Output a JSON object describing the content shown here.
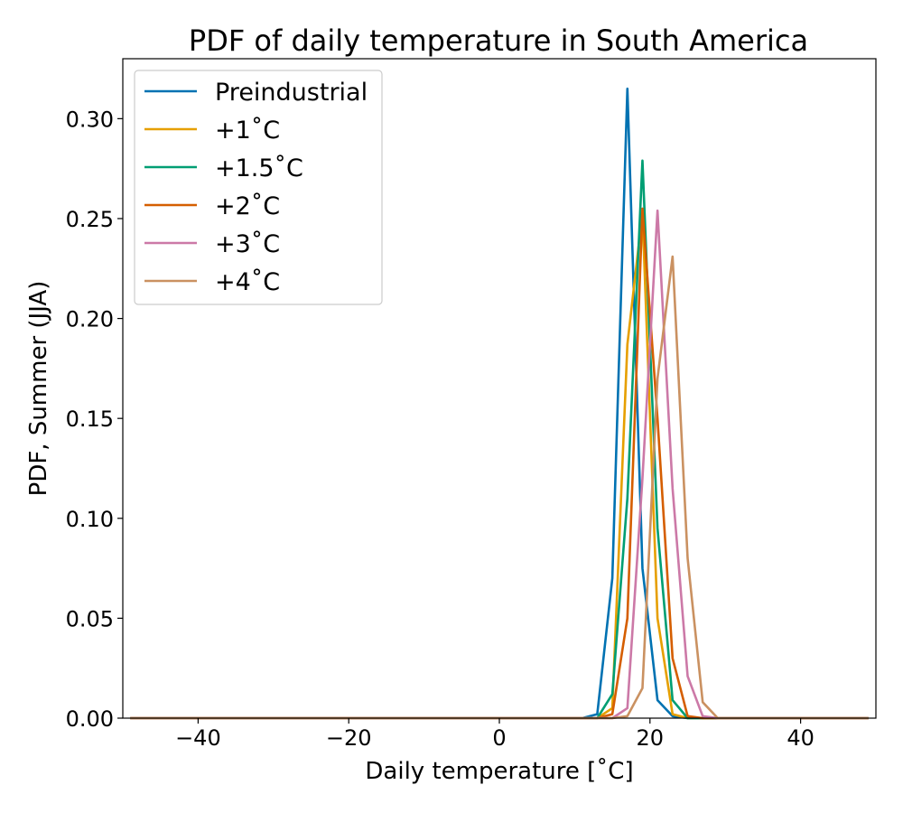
{
  "chart_data": {
    "type": "line",
    "title": "PDF of daily temperature in South America",
    "xlabel": "Daily temperature [˚C]",
    "ylabel": "PDF, Summer (JJA)",
    "xlim": [
      -50,
      50
    ],
    "ylim": [
      0,
      0.33
    ],
    "xticks": [
      -40,
      -20,
      0,
      20,
      40
    ],
    "xtick_labels": [
      "−40",
      "−20",
      "0",
      "20",
      "40"
    ],
    "yticks": [
      0.0,
      0.05,
      0.1,
      0.15,
      0.2,
      0.25,
      0.3
    ],
    "ytick_labels": [
      "0.00",
      "0.05",
      "0.10",
      "0.15",
      "0.20",
      "0.25",
      "0.30"
    ],
    "grid": false,
    "legend_position": "top-left",
    "x": [
      -49,
      -47,
      -45,
      -43,
      -41,
      -39,
      -37,
      -35,
      -33,
      -31,
      -29,
      -27,
      -25,
      -23,
      -21,
      -19,
      -17,
      -15,
      -13,
      -11,
      -9,
      -7,
      -5,
      -3,
      -1,
      1,
      3,
      5,
      7,
      9,
      11,
      13,
      15,
      17,
      19,
      21,
      23,
      25,
      27,
      29,
      31,
      33,
      35,
      37,
      39,
      41,
      43,
      45,
      47,
      49
    ],
    "series": [
      {
        "name": "Preindustrial",
        "color": "#0072b2",
        "values": [
          0,
          0,
          0,
          0,
          0,
          0,
          0,
          0,
          0,
          0,
          0,
          0,
          0,
          0,
          0,
          0,
          0,
          0,
          0,
          0,
          0,
          0,
          0,
          0,
          0,
          0,
          0,
          0,
          0,
          0,
          0,
          0.002,
          0.07,
          0.315,
          0.075,
          0.009,
          0.001,
          0,
          0,
          0,
          0,
          0,
          0,
          0,
          0,
          0,
          0,
          0,
          0,
          0
        ]
      },
      {
        "name": "+1˚C",
        "color": "#e69f00",
        "values": [
          0,
          0,
          0,
          0,
          0,
          0,
          0,
          0,
          0,
          0,
          0,
          0,
          0,
          0,
          0,
          0,
          0,
          0,
          0,
          0,
          0,
          0,
          0,
          0,
          0,
          0,
          0,
          0,
          0,
          0,
          0,
          0,
          0.005,
          0.187,
          0.253,
          0.05,
          0.002,
          0,
          0,
          0,
          0,
          0,
          0,
          0,
          0,
          0,
          0,
          0,
          0,
          0
        ]
      },
      {
        "name": "+1.5˚C",
        "color": "#009e73",
        "values": [
          0,
          0,
          0,
          0,
          0,
          0,
          0,
          0,
          0,
          0,
          0,
          0,
          0,
          0,
          0,
          0,
          0,
          0,
          0,
          0,
          0,
          0,
          0,
          0,
          0,
          0,
          0,
          0,
          0,
          0,
          0,
          0,
          0.012,
          0.11,
          0.279,
          0.095,
          0.009,
          0,
          0,
          0,
          0,
          0,
          0,
          0,
          0,
          0,
          0,
          0,
          0,
          0
        ]
      },
      {
        "name": "+2˚C",
        "color": "#d55e00",
        "values": [
          0,
          0,
          0,
          0,
          0,
          0,
          0,
          0,
          0,
          0,
          0,
          0,
          0,
          0,
          0,
          0,
          0,
          0,
          0,
          0,
          0,
          0,
          0,
          0,
          0,
          0,
          0,
          0,
          0,
          0,
          0,
          0,
          0.002,
          0.05,
          0.255,
          0.15,
          0.03,
          0.001,
          0,
          0,
          0,
          0,
          0,
          0,
          0,
          0,
          0,
          0,
          0,
          0
        ]
      },
      {
        "name": "+3˚C",
        "color": "#cc79a7",
        "values": [
          0,
          0,
          0,
          0,
          0,
          0,
          0,
          0,
          0,
          0,
          0,
          0,
          0,
          0,
          0,
          0,
          0,
          0,
          0,
          0,
          0,
          0,
          0,
          0,
          0,
          0,
          0,
          0,
          0,
          0,
          0,
          0,
          0,
          0.005,
          0.12,
          0.254,
          0.115,
          0.021,
          0.001,
          0,
          0,
          0,
          0,
          0,
          0,
          0,
          0,
          0,
          0,
          0
        ]
      },
      {
        "name": "+4˚C",
        "color": "#ca9161",
        "values": [
          0,
          0,
          0,
          0,
          0,
          0,
          0,
          0,
          0,
          0,
          0,
          0,
          0,
          0,
          0,
          0,
          0,
          0,
          0,
          0,
          0,
          0,
          0,
          0,
          0,
          0,
          0,
          0,
          0,
          0,
          0,
          0,
          0,
          0.001,
          0.015,
          0.17,
          0.231,
          0.08,
          0.008,
          0,
          0,
          0,
          0,
          0,
          0,
          0,
          0,
          0,
          0,
          0
        ]
      }
    ]
  }
}
